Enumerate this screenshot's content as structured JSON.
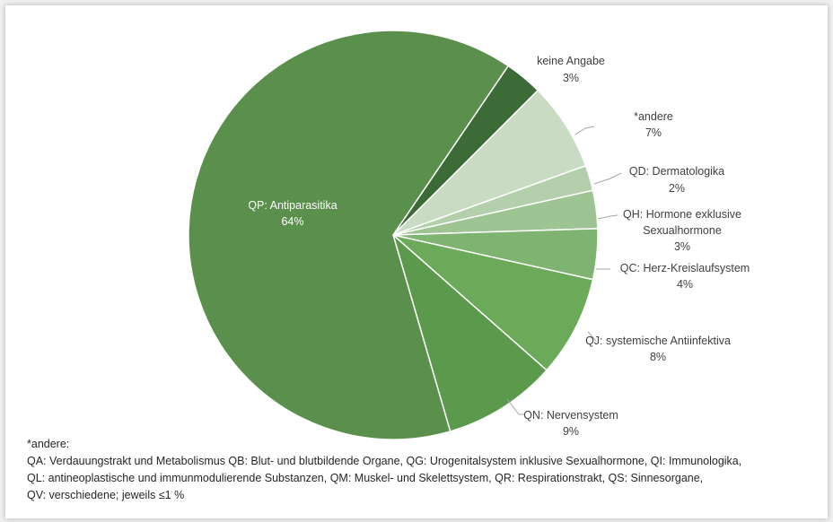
{
  "chart_data": {
    "type": "pie",
    "title": "",
    "start": "clockwise from top, main slice last",
    "slices": [
      {
        "label": "keine Angabe",
        "value": 3,
        "value_label": "3%",
        "color": "#3c6b37"
      },
      {
        "label": "*andere",
        "value": 7,
        "value_label": "7%",
        "color": "#c9dcc3"
      },
      {
        "label": "QD: Dermatologika",
        "value": 2,
        "value_label": "2%",
        "color": "#b3cfab"
      },
      {
        "label": "QH: Hormone exklusive Sexualhormone",
        "value": 3,
        "value_label": "3%",
        "color": "#9ec493"
      },
      {
        "label": "QC: Herz-Kreislaufsystem",
        "value": 4,
        "value_label": "4%",
        "color": "#7fb371"
      },
      {
        "label": "QJ: systemische Antiinfektiva",
        "value": 8,
        "value_label": "8%",
        "color": "#6aaa58"
      },
      {
        "label": "QN: Nervensystem",
        "value": 9,
        "value_label": "9%",
        "color": "#5b9a4d"
      },
      {
        "label": "QP: Antiparasitika",
        "value": 64,
        "value_label": "64%",
        "color": "#5b8f4c"
      }
    ]
  },
  "labels": {
    "keine": {
      "l1": "keine Angabe",
      "l2": "3%"
    },
    "andere": {
      "l1": "*andere",
      "l2": "7%"
    },
    "qd": {
      "l1": "QD: Dermatologika",
      "l2": "2%"
    },
    "qh": {
      "l1": "QH: Hormone exklusive",
      "l2": "Sexualhormone",
      "l3": "3%"
    },
    "qc": {
      "l1": "QC: Herz-Kreislaufsystem",
      "l2": "4%"
    },
    "qj": {
      "l1": "QJ: systemische Antiinfektiva",
      "l2": "8%"
    },
    "qn": {
      "l1": "QN: Nervensystem",
      "l2": "9%"
    },
    "qp": {
      "l1": "QP: Antiparasitika",
      "l2": "64%"
    }
  },
  "footnote": {
    "title": "*andere:",
    "line1": "QA: Verdauungstrakt und Metabolismus QB: Blut- und blutbildende Organe, QG: Urogenitalsystem inklusive Sexualhormone, QI: Immunologika,",
    "line2": "QL: antineoplastische und immunmodulierende Substanzen, QM: Muskel- und Skelettsystem,  QR: Respirationstrakt, QS: Sinnesorgane,",
    "line3": "QV: verschiedene; jeweils ≤1 %"
  }
}
